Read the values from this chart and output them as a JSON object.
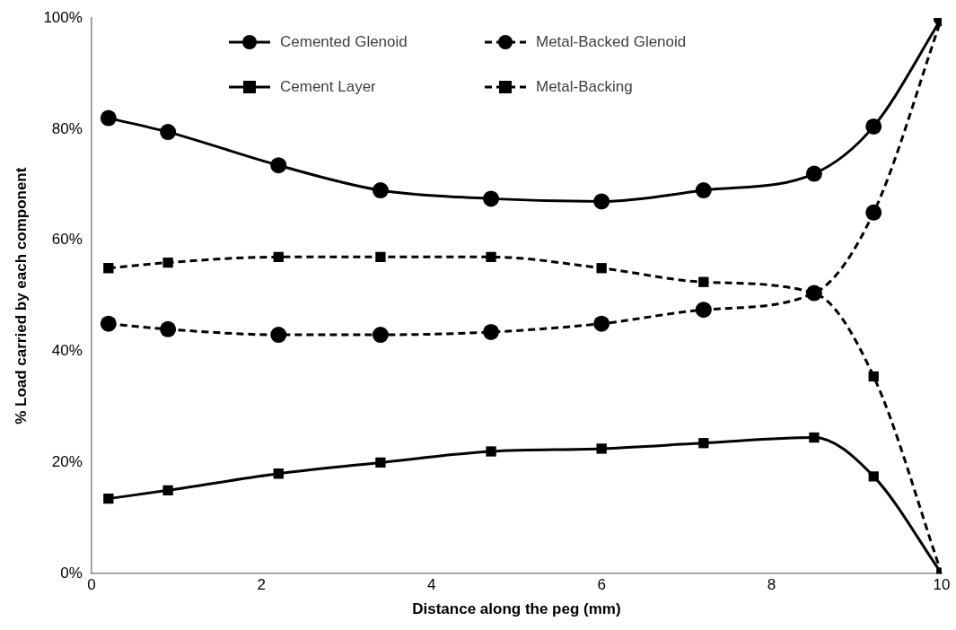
{
  "chart_data": {
    "type": "line",
    "xlabel": "Distance along the peg (mm)",
    "ylabel": "% Load carried by each component",
    "xlim": [
      0,
      10
    ],
    "xticks": [
      0,
      2,
      4,
      6,
      8,
      10
    ],
    "ylim": [
      0,
      100
    ],
    "yticks": [
      {
        "value": 0,
        "label": "0%"
      },
      {
        "value": 20,
        "label": "20%"
      },
      {
        "value": 40,
        "label": "40%"
      },
      {
        "value": 60,
        "label": "60%"
      },
      {
        "value": 80,
        "label": "80%"
      },
      {
        "value": 100,
        "label": "100%"
      }
    ],
    "grid": false,
    "legend": "top",
    "x": [
      0.2,
      0.9,
      2.2,
      3.4,
      4.7,
      6.0,
      7.2,
      8.5,
      9.2,
      10
    ],
    "series": [
      {
        "name": "Cemented Glenoid",
        "color": "#000000",
        "marker": "circle",
        "line_style": "solid",
        "values": [
          82,
          79.5,
          73.5,
          69,
          67.5,
          67,
          69,
          72,
          80.5,
          100
        ]
      },
      {
        "name": "Metal-Backed Glenoid",
        "color": "#000000",
        "marker": "circle",
        "line_style": "dashed",
        "values": [
          45,
          44,
          43,
          43,
          43.5,
          45,
          47.5,
          50.5,
          65,
          100
        ]
      },
      {
        "name": "Cement Layer",
        "color": "#000000",
        "marker": "square",
        "line_style": "solid",
        "values": [
          13.5,
          15,
          18,
          20,
          22,
          22.5,
          23.5,
          24.5,
          17.5,
          0
        ]
      },
      {
        "name": "Metal-Backing",
        "color": "#000000",
        "marker": "square",
        "line_style": "dashed",
        "values": [
          55,
          56,
          57,
          57,
          57,
          55,
          52.5,
          50.5,
          35.5,
          0
        ]
      }
    ]
  }
}
